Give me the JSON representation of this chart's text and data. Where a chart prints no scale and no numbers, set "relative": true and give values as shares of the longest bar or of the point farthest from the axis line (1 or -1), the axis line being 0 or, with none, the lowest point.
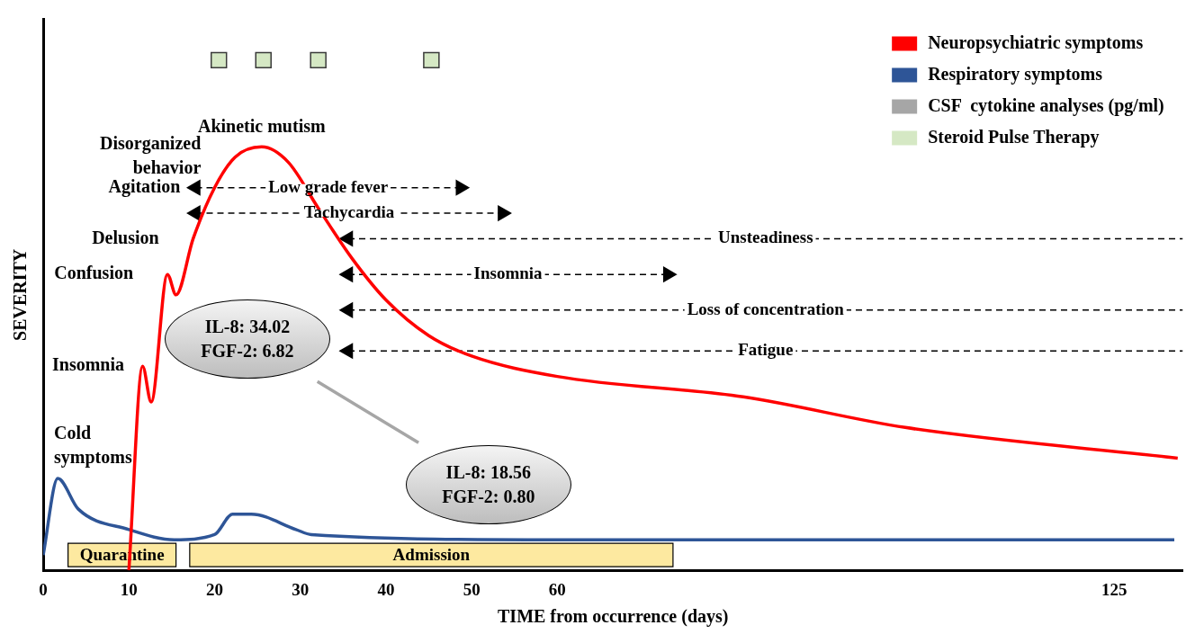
{
  "chart_data": {
    "type": "line",
    "relative": true,
    "xlabel": "TIME from occurrence (days)",
    "ylabel": "SEVERITY",
    "xlim": [
      0,
      133
    ],
    "xticks": [
      0,
      10,
      20,
      30,
      40,
      50,
      60,
      125
    ],
    "grid": false,
    "legend": "top right",
    "series": [
      {
        "name": "Neuropsychiatric symptoms",
        "color": "#ff0000",
        "x": [
          10,
          11.6,
          12.6,
          14.5,
          15.5,
          17.5,
          20,
          22.4,
          25.5,
          28.6,
          32.1,
          36.1,
          40,
          45,
          50,
          60,
          81.7,
          100.6,
          132.4
        ],
        "values": [
          0,
          0.4,
          0.33,
          0.58,
          0.54,
          0.65,
          0.75,
          0.81,
          0.83,
          0.8,
          0.71,
          0.61,
          0.53,
          0.46,
          0.42,
          0.38,
          0.34,
          0.28,
          0.22
        ]
      },
      {
        "name": "Respiratory symptoms",
        "color": "#2e5597",
        "x": [
          0,
          1.7,
          4.1,
          10,
          15.3,
          20,
          22.1,
          24.3,
          29.5,
          31.3,
          60,
          132
        ],
        "values": [
          0.03,
          0.18,
          0.12,
          0.08,
          0.06,
          0.07,
          0.11,
          0.11,
          0.08,
          0.07,
          0.06,
          0.06
        ]
      },
      {
        "name": "CSF  cytokine analyses (pg/ml)",
        "color": "#a6a6a6",
        "x": [
          32,
          43.8
        ],
        "values": [
          0.37,
          0.25
        ]
      },
      {
        "name": "Steroid Pulse Therapy",
        "type": "scatter",
        "marker": "square",
        "color": "#d5e8c4",
        "x": [
          20.5,
          25.7,
          32.1,
          45.3
        ],
        "values": [
          1,
          1,
          1,
          1
        ]
      },
      {
        "name": "Low grade fever",
        "color": "#000000",
        "line_style": "dashed",
        "marker": "triangle",
        "x": [
          17.8,
          48.7
        ],
        "values": [
          0.75,
          0.75
        ]
      },
      {
        "name": "Tachycardia",
        "color": "#000000",
        "line_style": "dashed",
        "marker": "triangle",
        "x": [
          17.8,
          53.6
        ],
        "values": [
          0.7,
          0.7
        ]
      },
      {
        "name": "Unsteadiness",
        "color": "#000000",
        "line_style": "dashed",
        "marker": "triangle",
        "x": [
          35.6,
          133
        ],
        "values": [
          0.65,
          0.65
        ]
      },
      {
        "name": "Insomnia",
        "color": "#000000",
        "line_style": "dashed",
        "marker": "triangle",
        "x": [
          35.6,
          72.9
        ],
        "values": [
          0.58,
          0.58
        ]
      },
      {
        "name": "Loss of concentration",
        "color": "#000000",
        "line_style": "dashed",
        "marker": "triangle",
        "x": [
          35.6,
          133
        ],
        "values": [
          0.51,
          0.51
        ]
      },
      {
        "name": "Fatigue",
        "color": "#000000",
        "line_style": "dashed",
        "marker": "triangle",
        "x": [
          35.6,
          133
        ],
        "values": [
          0.43,
          0.43
        ]
      }
    ],
    "bands": [
      {
        "axis": "x",
        "from": 2.9,
        "to": 15.5,
        "label": "Quarantine",
        "color": "#fde9a0"
      },
      {
        "axis": "x",
        "from": 17.1,
        "to": 73.5,
        "label": "Admission",
        "color": "#fde9a0"
      }
    ],
    "annotations": [
      {
        "text": "Cold\nsymptoms",
        "x": 1.7,
        "y": 0.18
      },
      {
        "text": "Insomnia",
        "x": 11.6,
        "y": 0.4
      },
      {
        "text": "Confusion",
        "x": 14.5,
        "y": 0.58
      },
      {
        "text": "Delusion",
        "x": 17.5,
        "y": 0.65
      },
      {
        "text": "Agitation",
        "x": 20,
        "y": 0.75
      },
      {
        "text": "Disorganized\nbehavior",
        "x": 22.4,
        "y": 0.81
      },
      {
        "text": "Akinetic mutism",
        "x": 25.5,
        "y": 0.83
      },
      {
        "text": "IL-8: 34.02\nFGF-2: 6.82",
        "x": 32,
        "y": 0.37
      },
      {
        "text": "IL-8: 18.56\nFGF-2: 0.80",
        "x": 43.8,
        "y": 0.25
      }
    ]
  }
}
